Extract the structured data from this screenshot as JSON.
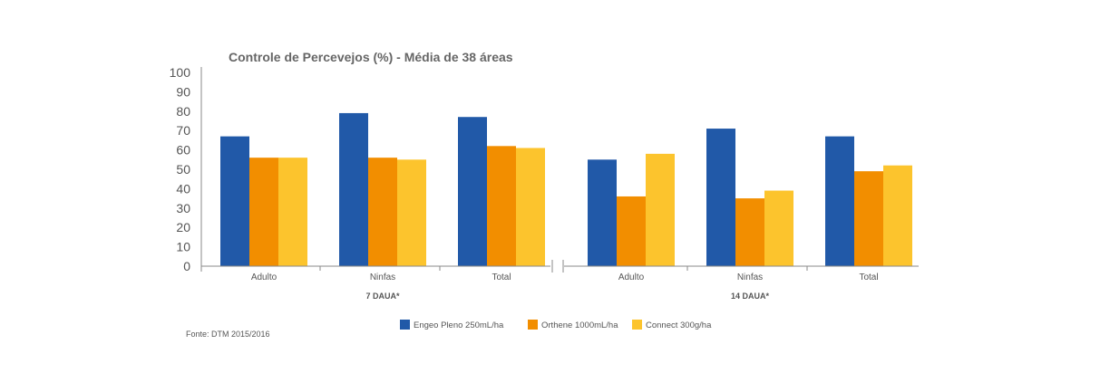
{
  "chart_data": {
    "type": "bar",
    "title": "Controle de Percevejos (%) - Média de 38 áreas",
    "ylim": [
      0,
      100
    ],
    "yticks": [
      0,
      10,
      20,
      30,
      40,
      50,
      60,
      70,
      80,
      90,
      100
    ],
    "groups": [
      {
        "label": "7 DAUA*",
        "categories": [
          "Adulto",
          "Ninfas",
          "Total"
        ]
      },
      {
        "label": "14 DAUA*",
        "categories": [
          "Adulto",
          "Ninfas",
          "Total"
        ]
      }
    ],
    "series": [
      {
        "name": "Engeo Pleno 250mL/ha",
        "color": "#2159a8",
        "values": [
          67,
          79,
          77,
          55,
          71,
          67
        ]
      },
      {
        "name": "Orthene 1000mL/ha",
        "color": "#f28e00",
        "values": [
          56,
          56,
          62,
          36,
          35,
          49
        ]
      },
      {
        "name": "Connect 300g/ha",
        "color": "#fcc42d",
        "values": [
          56,
          55,
          61,
          58,
          39,
          52
        ]
      }
    ],
    "legend_position": "bottom",
    "grid": false
  },
  "footer": {
    "source": "Fonte: DTM 2015/2016"
  }
}
